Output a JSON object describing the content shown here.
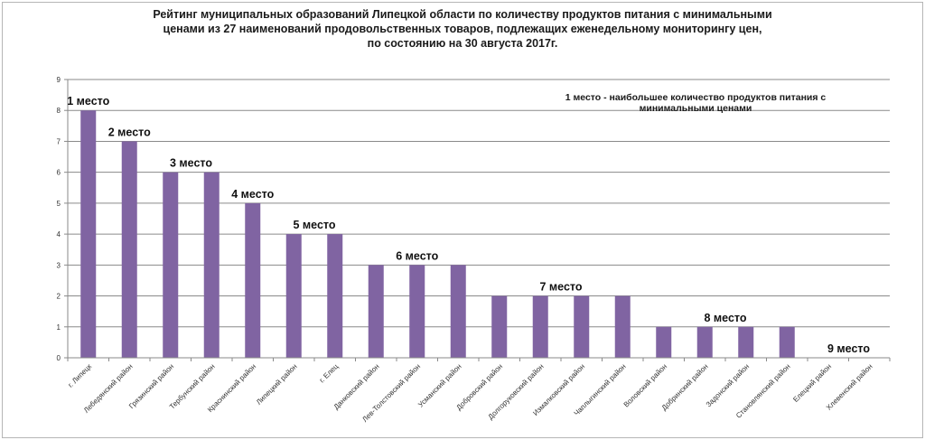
{
  "chart_data": {
    "type": "bar",
    "title_lines": [
      "Рейтинг муниципальных образований Липецкой области по количеству продуктов питания с минимальными",
      "ценами из 27 наименований продовольственных товаров, подлежащих еженедельному мониторингу цен,",
      "по состоянию на 30 августа 2017г."
    ],
    "annotation_lines": [
      "1 место - наибольшее количество продуктов питания с",
      "минимальными ценами"
    ],
    "categories": [
      "г. Липецк",
      "Лебедянский район",
      "Грязинский район",
      "Тербунский район",
      "Краснинский район",
      "Липецкий район",
      "г. Елец",
      "Данковский район",
      "Лев-Толстовский район",
      "Усманский район",
      "Добровский район",
      "Долгоруковский район",
      "Измалковский район",
      "Чаплыгинский район",
      "Воловский район",
      "Добринский район",
      "Задонский район",
      "Становлянский район",
      "Елецкий район",
      "Хлевенский район"
    ],
    "values": [
      8,
      7,
      6,
      6,
      5,
      4,
      4,
      3,
      3,
      3,
      2,
      2,
      2,
      2,
      1,
      1,
      1,
      1,
      0,
      0
    ],
    "yticks": [
      "0",
      "1",
      "2",
      "3",
      "4",
      "5",
      "6",
      "7",
      "8",
      "9"
    ],
    "ylim": [
      0,
      9
    ],
    "grid": true,
    "bar_color": "#8064a2",
    "place_labels": [
      {
        "text": "1 место",
        "value": 8,
        "from": 0,
        "to": 0
      },
      {
        "text": "2 место",
        "value": 7,
        "from": 1,
        "to": 1
      },
      {
        "text": "3 место",
        "value": 6,
        "from": 2,
        "to": 3
      },
      {
        "text": "4 место",
        "value": 5,
        "from": 4,
        "to": 4
      },
      {
        "text": "5 место",
        "value": 4,
        "from": 5,
        "to": 6
      },
      {
        "text": "6 место",
        "value": 3,
        "from": 7,
        "to": 9
      },
      {
        "text": "7 место",
        "value": 2,
        "from": 10,
        "to": 13
      },
      {
        "text": "8 место",
        "value": 1,
        "from": 14,
        "to": 17
      },
      {
        "text": "9 место",
        "value": 0,
        "from": 18,
        "to": 19
      }
    ]
  }
}
